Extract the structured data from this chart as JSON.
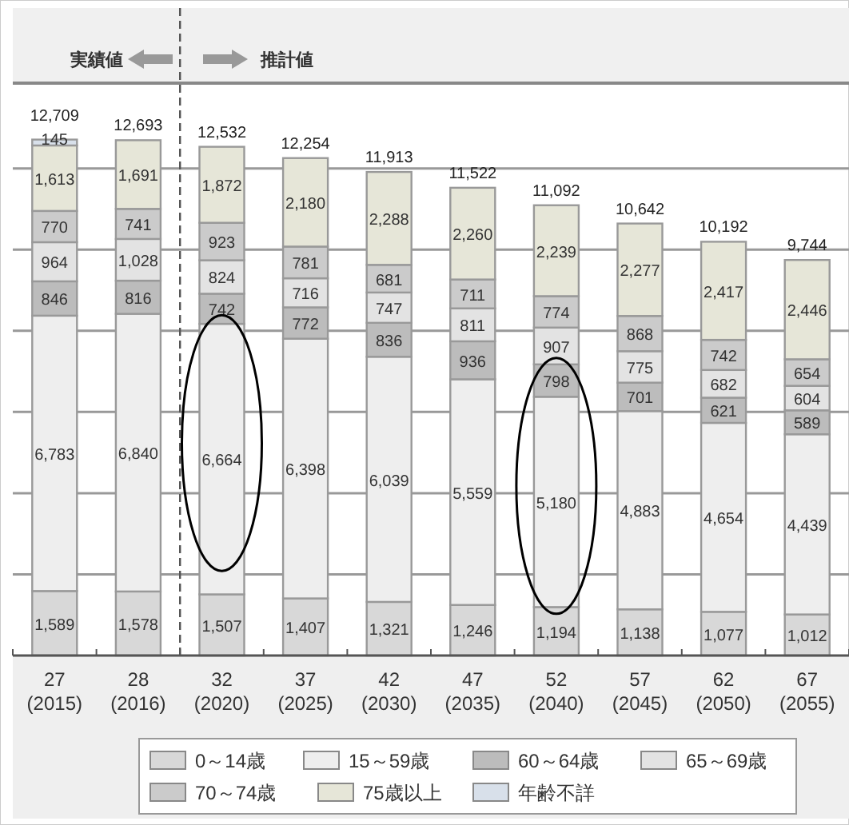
{
  "chart_data": {
    "type": "bar",
    "stacked": true,
    "grid": "y",
    "legend": "bottom",
    "tick_labels": "x",
    "categories": [
      "27\n(2015)",
      "28\n(2016)",
      "32\n(2020)",
      "37\n(2025)",
      "42\n(2030)",
      "47\n(2035)",
      "52\n(2040)",
      "57\n(2045)",
      "62\n(2050)",
      "67\n(2055)"
    ],
    "ylim": [
      0,
      14100
    ],
    "yticks": [
      {
        "value": 2000,
        "label": null
      },
      {
        "value": 4000,
        "label": null
      },
      {
        "value": 6000,
        "label": null
      },
      {
        "value": 8000,
        "label": null
      },
      {
        "value": 10000,
        "label": null
      },
      {
        "value": 12000,
        "label": null
      }
    ],
    "series": [
      {
        "name": "0～14歳",
        "color": "#d8d8d8",
        "values": [
          1589,
          1578,
          1507,
          1407,
          1321,
          1246,
          1194,
          1138,
          1077,
          1012
        ],
        "value_labels": [
          "1,589",
          "1,578",
          "1,507",
          "1,407",
          "1,321",
          "1,246",
          "1,194",
          "1,138",
          "1,077",
          "1,012"
        ]
      },
      {
        "name": "15～59歳",
        "color": "#eeeeee",
        "values": [
          6783,
          6840,
          6664,
          6398,
          6039,
          5559,
          5180,
          4883,
          4654,
          4439
        ],
        "value_labels": [
          "6,783",
          "6,840",
          "6,664",
          "6,398",
          "6,039",
          "5,559",
          "5,180",
          "4,883",
          "4,654",
          "4,439"
        ]
      },
      {
        "name": "60～64歳",
        "color": "#bcbcbc",
        "values": [
          846,
          816,
          742,
          772,
          836,
          936,
          798,
          701,
          621,
          589
        ],
        "value_labels": [
          "846",
          "816",
          "742",
          "772",
          "836",
          "936",
          "798",
          "701",
          "621",
          "589"
        ]
      },
      {
        "name": "65～69歳",
        "color": "#e3e3e3",
        "values": [
          964,
          1028,
          824,
          716,
          747,
          811,
          907,
          775,
          682,
          604
        ],
        "value_labels": [
          "964",
          "1,028",
          "824",
          "716",
          "747",
          "811",
          "907",
          "775",
          "682",
          "604"
        ]
      },
      {
        "name": "70～74歳",
        "color": "#cbcbcb",
        "values": [
          770,
          741,
          923,
          781,
          681,
          711,
          774,
          868,
          742,
          654
        ],
        "value_labels": [
          "770",
          "741",
          "923",
          "781",
          "681",
          "711",
          "774",
          "868",
          "742",
          "654"
        ]
      },
      {
        "name": "75歳以上",
        "color": "#e6e6d8",
        "values": [
          1613,
          1691,
          1872,
          2180,
          2288,
          2260,
          2239,
          2277,
          2417,
          2446
        ],
        "value_labels": [
          "1,613",
          "1,691",
          "1,872",
          "2,180",
          "2,288",
          "2,260",
          "2,239",
          "2,277",
          "2,417",
          "2,446"
        ]
      },
      {
        "name": "年齢不詳",
        "color": "#d8e0ea",
        "values": [
          145,
          null,
          null,
          null,
          null,
          null,
          null,
          null,
          null,
          null
        ],
        "value_labels": [
          "145",
          null,
          null,
          null,
          null,
          null,
          null,
          null,
          null,
          null
        ]
      }
    ],
    "totals": [
      "12,709",
      "12,693",
      "12,532",
      "12,254",
      "11,913",
      "11,522",
      "11,092",
      "10,642",
      "10,192",
      "9,744"
    ],
    "annotations": [
      "実績値",
      "推計値"
    ]
  }
}
